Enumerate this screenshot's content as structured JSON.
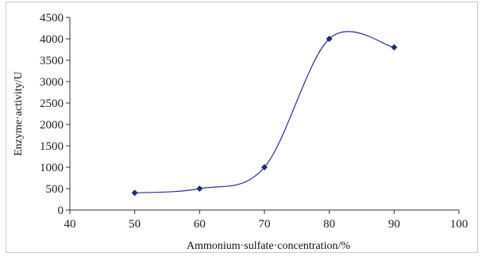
{
  "chart_data": {
    "type": "line",
    "title": "",
    "xlabel": "Ammonium·sulfate·concentration/%",
    "ylabel": "Enzyme·activity/U",
    "xlim": [
      40,
      100
    ],
    "ylim": [
      0,
      4500
    ],
    "x_ticks": [
      "40",
      "50",
      "60",
      "70",
      "80",
      "90",
      "100"
    ],
    "y_ticks": [
      "0",
      "500",
      "1000",
      "1500",
      "2000",
      "2500",
      "3000",
      "3500",
      "4000",
      "4500"
    ],
    "grid": false,
    "legend": "none",
    "series": [
      {
        "x": [
          50,
          60,
          70,
          80,
          90
        ],
        "y": [
          400,
          500,
          1000,
          4000,
          3800
        ],
        "marker": "diamond",
        "line": "smooth"
      }
    ],
    "colors": {
      "line": "#2b2f8f",
      "marker": "#1f2a7a",
      "axis": "#333333"
    }
  }
}
